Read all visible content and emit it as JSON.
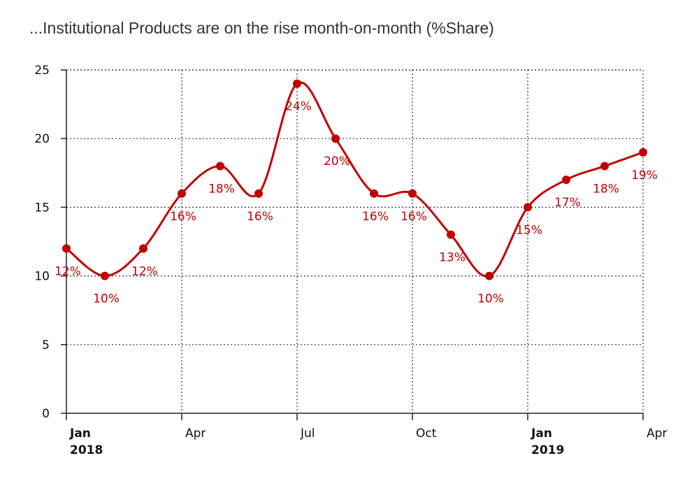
{
  "chart_data": {
    "type": "line",
    "title": "...Institutional Products are on the rise month-on-month (%Share)",
    "x": [
      "2018-01",
      "2018-02",
      "2018-03",
      "2018-04",
      "2018-05",
      "2018-06",
      "2018-07",
      "2018-08",
      "2018-09",
      "2018-10",
      "2018-11",
      "2018-12",
      "2019-01",
      "2019-02",
      "2019-03",
      "2019-04"
    ],
    "series": [
      {
        "values": [
          12,
          10,
          12,
          16,
          18,
          16,
          24,
          20,
          16,
          16,
          13,
          10,
          15,
          17,
          18,
          19
        ],
        "labels": [
          "12%",
          "10%",
          "12%",
          "16%",
          "18%",
          "16%",
          "24%",
          "20%",
          "16%",
          "16%",
          "13%",
          "10%",
          "15%",
          "17%",
          "18%",
          "19%"
        ]
      }
    ],
    "ylim": [
      0,
      25
    ],
    "yticks": [
      "0",
      "5",
      "10",
      "15",
      "20",
      "25"
    ],
    "xticks": [
      {
        "x": "2018-01",
        "line1": "Jan",
        "line2": "2018",
        "bold": true
      },
      {
        "x": "2018-04",
        "line1": "Apr",
        "line2": "",
        "bold": false
      },
      {
        "x": "2018-07",
        "line1": "Jul",
        "line2": "",
        "bold": false
      },
      {
        "x": "2018-10",
        "line1": "Oct",
        "line2": "",
        "bold": false
      },
      {
        "x": "2019-01",
        "line1": "Jan",
        "line2": "2019",
        "bold": true
      },
      {
        "x": "2019-04",
        "line1": "Apr",
        "line2": "",
        "bold": false
      }
    ],
    "grid": true,
    "colors": {
      "line": "#c00000",
      "label": "#c00000"
    }
  }
}
